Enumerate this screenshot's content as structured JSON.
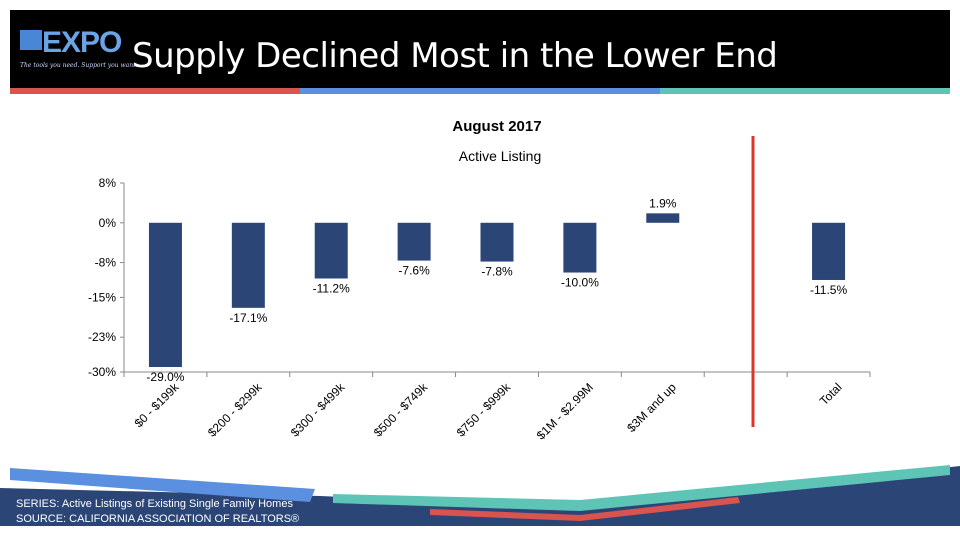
{
  "header": {
    "logo_text": "EXPO",
    "logo_tagline": "The tools you need. Support you want.",
    "title": "Supply Declined Most in the Lower End"
  },
  "chart_data": {
    "type": "bar",
    "title": "August 2017",
    "subtitle": "Active Listing",
    "categories": [
      "$0 - $199k",
      "$200 - $299k",
      "$300 - $499k",
      "$500 - $749k",
      "$750 - $999k",
      "$1M - $2.99M",
      "$3M and up",
      "Total"
    ],
    "values": [
      -29.0,
      -17.1,
      -11.2,
      -7.6,
      -7.8,
      -10.0,
      1.9,
      -11.5
    ],
    "data_labels": [
      "-29.0%",
      "-17.1%",
      "-11.2%",
      "-7.6%",
      "-7.8%",
      "-10.0%",
      "1.9%",
      "-11.5%"
    ],
    "y_ticks": [
      8,
      0,
      -8,
      -15,
      -23,
      -30
    ],
    "y_tick_labels": [
      "8%",
      "0%",
      "-8%",
      "-15%",
      "-23%",
      "-30%"
    ],
    "ylim": [
      -30,
      8
    ],
    "bar_color": "#2b4576",
    "divider_color": "#d9372b",
    "grid": false,
    "legend": "none"
  },
  "footer": {
    "series": "SERIES: Active Listings of Existing Single Family Homes",
    "source": "SOURCE:  CALIFORNIA ASSOCIATION OF REALTORS®"
  },
  "colors": {
    "header_bg": "#000000",
    "stripe_red": "#d9534f",
    "stripe_blue": "#5b8fe0",
    "stripe_teal": "#5ec4b6",
    "footer_navy": "#2b4576"
  }
}
